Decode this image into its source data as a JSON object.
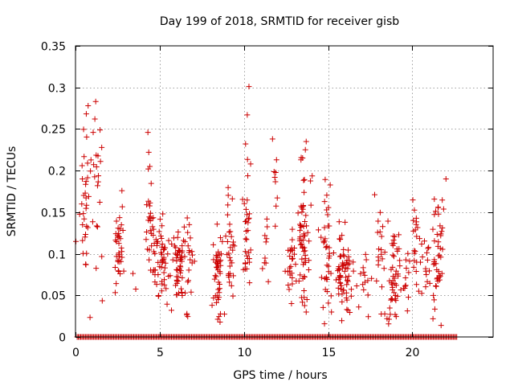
{
  "chart_data": {
    "type": "scatter",
    "title": "Day 199 of 2018, SRMTID for receiver gisb",
    "xlabel": "GPS time / hours",
    "ylabel": "SRMTID / TECUs",
    "xlim": [
      0,
      24.8
    ],
    "ylim": [
      0,
      0.35
    ],
    "xticks": [
      0,
      5,
      10,
      15,
      20
    ],
    "xtick_labels": [
      "0",
      "5",
      "10",
      "15",
      "20"
    ],
    "yticks": [
      0,
      0.05,
      0.1,
      0.15,
      0.2,
      0.25,
      0.3,
      0.35
    ],
    "ytick_labels": [
      "0",
      "0.05",
      "0.1",
      "0.15",
      "0.2",
      "0.25",
      "0.3",
      "0.35"
    ],
    "grid": true,
    "marker": "+",
    "series": [
      {
        "name": "SRMTID",
        "color": "#cc0000",
        "clusters": [
          {
            "x": 0.6,
            "y": 0.165,
            "xs": 0.25,
            "ys": 0.04,
            "n": 35
          },
          {
            "x": 1.3,
            "y": 0.16,
            "xs": 0.25,
            "ys": 0.05,
            "n": 18
          },
          {
            "x": 2.6,
            "y": 0.105,
            "xs": 0.2,
            "ys": 0.04,
            "n": 35
          },
          {
            "x": 3.5,
            "y": 0.07,
            "xs": 0.1,
            "ys": 0.01,
            "n": 2
          },
          {
            "x": 4.5,
            "y": 0.13,
            "xs": 0.25,
            "ys": 0.03,
            "n": 35
          },
          {
            "x": 5.2,
            "y": 0.09,
            "xs": 0.3,
            "ys": 0.025,
            "n": 45
          },
          {
            "x": 6.1,
            "y": 0.09,
            "xs": 0.35,
            "ys": 0.025,
            "n": 50
          },
          {
            "x": 6.8,
            "y": 0.1,
            "xs": 0.3,
            "ys": 0.035,
            "n": 20
          },
          {
            "x": 8.4,
            "y": 0.08,
            "xs": 0.3,
            "ys": 0.025,
            "n": 45
          },
          {
            "x": 9.2,
            "y": 0.11,
            "xs": 0.25,
            "ys": 0.03,
            "n": 30
          },
          {
            "x": 10.2,
            "y": 0.125,
            "xs": 0.2,
            "ys": 0.035,
            "n": 30
          },
          {
            "x": 11.3,
            "y": 0.105,
            "xs": 0.25,
            "ys": 0.02,
            "n": 10
          },
          {
            "x": 11.9,
            "y": 0.18,
            "xs": 0.12,
            "ys": 0.03,
            "n": 8
          },
          {
            "x": 12.8,
            "y": 0.08,
            "xs": 0.2,
            "ys": 0.015,
            "n": 25
          },
          {
            "x": 13.5,
            "y": 0.115,
            "xs": 0.35,
            "ys": 0.04,
            "n": 60
          },
          {
            "x": 14.9,
            "y": 0.09,
            "xs": 0.3,
            "ys": 0.04,
            "n": 40
          },
          {
            "x": 15.9,
            "y": 0.075,
            "xs": 0.4,
            "ys": 0.025,
            "n": 65
          },
          {
            "x": 17.1,
            "y": 0.07,
            "xs": 0.3,
            "ys": 0.02,
            "n": 15
          },
          {
            "x": 18.1,
            "y": 0.095,
            "xs": 0.3,
            "ys": 0.03,
            "n": 20
          },
          {
            "x": 18.9,
            "y": 0.08,
            "xs": 0.3,
            "ys": 0.035,
            "n": 45
          },
          {
            "x": 19.6,
            "y": 0.075,
            "xs": 0.2,
            "ys": 0.02,
            "n": 12
          },
          {
            "x": 20.2,
            "y": 0.11,
            "xs": 0.2,
            "ys": 0.03,
            "n": 22
          },
          {
            "x": 20.8,
            "y": 0.08,
            "xs": 0.2,
            "ys": 0.02,
            "n": 15
          },
          {
            "x": 21.5,
            "y": 0.1,
            "xs": 0.3,
            "ys": 0.035,
            "n": 45
          }
        ],
        "highlights": [
          {
            "x": 1.2,
            "y": 0.283
          },
          {
            "x": 1.15,
            "y": 0.262
          },
          {
            "x": 1.05,
            "y": 0.246
          },
          {
            "x": 4.3,
            "y": 0.246
          },
          {
            "x": 4.35,
            "y": 0.222
          },
          {
            "x": 10.3,
            "y": 0.301
          },
          {
            "x": 10.2,
            "y": 0.267
          },
          {
            "x": 10.1,
            "y": 0.232
          },
          {
            "x": 10.4,
            "y": 0.208
          },
          {
            "x": 11.7,
            "y": 0.238
          },
          {
            "x": 13.7,
            "y": 0.235
          },
          {
            "x": 13.65,
            "y": 0.225
          },
          {
            "x": 22.0,
            "y": 0.19
          },
          {
            "x": 18.5,
            "y": 0.022
          },
          {
            "x": 13.7,
            "y": 0.03
          },
          {
            "x": 15.2,
            "y": 0.03
          },
          {
            "x": 5.7,
            "y": 0.032
          }
        ],
        "zero_range": [
          0.1,
          22.7
        ],
        "zero_step": 0.07
      }
    ]
  }
}
